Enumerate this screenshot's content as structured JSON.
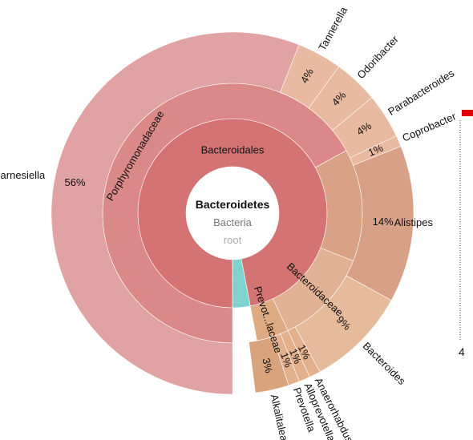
{
  "chart_data": {
    "type": "sunburst",
    "center": {
      "title": "Bacteroidetes",
      "subtitle": "Bacteria",
      "root": "root"
    },
    "nodes": [
      {
        "id": "bacteroidales",
        "name": "Bacteroidales",
        "level": 1,
        "start": 0.0,
        "value": 0.97,
        "color": "#d37373",
        "show_pct": false
      },
      {
        "id": "alkalitalea",
        "name": "Alkalitalea",
        "level": 1,
        "start": 0.97,
        "value": 0.03,
        "color": "#7fd3cf",
        "show_pct": false
      },
      {
        "id": "porphyromonadaceae",
        "name": "Porphyromonadaceae",
        "level": 2,
        "start": 0.0,
        "value": 0.67,
        "color": "#db8888",
        "show_pct": false
      },
      {
        "id": "rikenellaceae",
        "name": "",
        "level": 2,
        "start": 0.67,
        "value": 0.14,
        "color": "#d9a185",
        "show_pct": false
      },
      {
        "id": "bacteroidaceae",
        "name": "Bacteroidaceae",
        "level": 2,
        "start": 0.81,
        "value": 0.12,
        "color": "#e0b194",
        "show_pct": false
      },
      {
        "id": "prevotellaceae",
        "name": "Prevot...laceae",
        "level": 2,
        "start": 0.93,
        "value": 0.04,
        "color": "#ddaa82",
        "show_pct": false
      },
      {
        "id": "barnesiella",
        "name": "Barnesiella",
        "pct": "56%",
        "level": 3,
        "start": 0.0,
        "value": 0.56,
        "color": "#e0a2a2",
        "show_pct": true
      },
      {
        "id": "tannerella",
        "name": "Tannerella",
        "pct": "4%",
        "level": 3,
        "start": 0.56,
        "value": 0.04,
        "color": "#e8baa1",
        "show_pct": true
      },
      {
        "id": "odoribacter",
        "name": "Odoribacter",
        "pct": "4%",
        "level": 3,
        "start": 0.6,
        "value": 0.04,
        "color": "#e8baa1",
        "show_pct": true
      },
      {
        "id": "parabacteroides",
        "name": "Parabacteroides",
        "pct": "4%",
        "level": 3,
        "start": 0.64,
        "value": 0.04,
        "color": "#e8baa1",
        "show_pct": true
      },
      {
        "id": "coprobacter",
        "name": "Coprobacter",
        "pct": "1%",
        "level": 3,
        "start": 0.68,
        "value": 0.01,
        "color": "#e8baa1",
        "show_pct": true
      },
      {
        "id": "alistipes",
        "name": "Alistipes",
        "pct": "14%",
        "level": 3,
        "start": 0.69,
        "value": 0.14,
        "color": "#d8a187",
        "show_pct": true
      },
      {
        "id": "bacteroides",
        "name": "Bacteroides",
        "pct": "9%",
        "level": 3,
        "start": 0.83,
        "value": 0.09,
        "color": "#e6bb9b",
        "show_pct": true
      },
      {
        "id": "anaerorhabdus",
        "name": "Anaerorhabdus",
        "pct": "1%",
        "level": 3,
        "start": 0.92,
        "value": 0.01,
        "color": "#e2b08d",
        "show_pct": true
      },
      {
        "id": "alloprevotella",
        "name": "Alloprevotella",
        "pct": "1%",
        "level": 3,
        "start": 0.93,
        "value": 0.01,
        "color": "#e2b08d",
        "show_pct": true
      },
      {
        "id": "prevotella",
        "name": "Prevotella",
        "pct": "1%",
        "level": 3,
        "start": 0.94,
        "value": 0.01,
        "color": "#e2b08d",
        "show_pct": true
      },
      {
        "id": "alkalitalea-genus",
        "name": "Alkalitalea",
        "pct": "3%",
        "level": 3,
        "start": 0.95,
        "value": 0.03,
        "color": "#d9a37d",
        "show_pct": true
      }
    ],
    "legend": {
      "marker_color": "#e00000",
      "value": "4"
    }
  }
}
